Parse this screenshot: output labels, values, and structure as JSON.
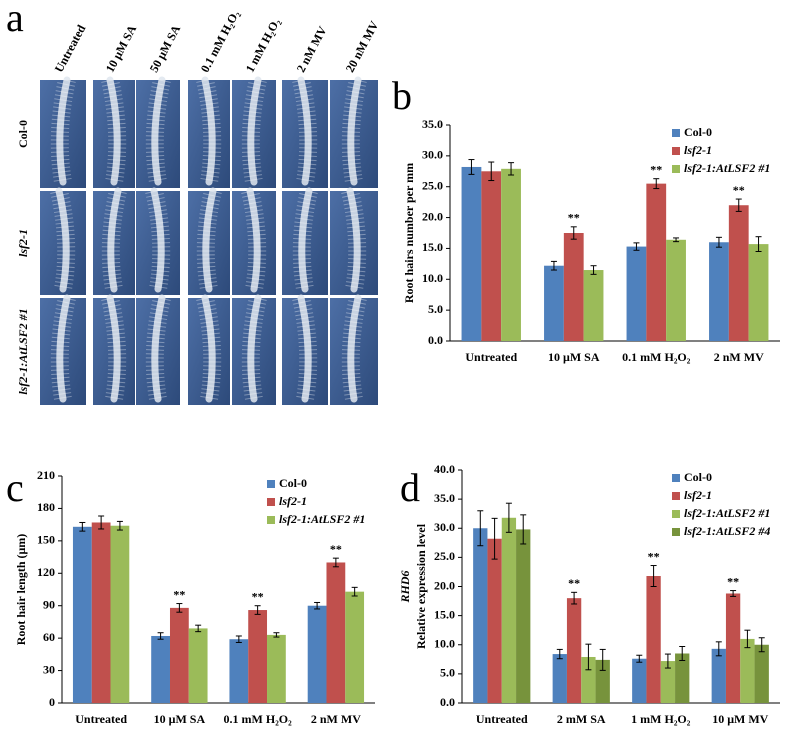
{
  "panel_labels": [
    "a",
    "b",
    "c",
    "d"
  ],
  "image_panel": {
    "columns": [
      "Untreated",
      "10 μM SA",
      "50 μM SA",
      "0.1 mM H₂O₂",
      "1 mM H₂O₂",
      "2 nM MV",
      "20 nM MV"
    ],
    "rows": [
      "Col-0",
      "lsf2-1",
      "lsf2-1:AtLSF2 #1"
    ]
  },
  "chart_data": [
    {
      "type": "bar",
      "ylabel": "Root hairs number per mm",
      "categories": [
        "Untreated",
        "10 μM SA",
        "0.1 mM H₂O₂",
        "2 nM MV"
      ],
      "ylim": [
        0,
        35
      ],
      "yticks": [
        {
          "value": 0,
          "label": "0.0"
        },
        {
          "value": 5,
          "label": "5.0"
        },
        {
          "value": 10,
          "label": "10.0"
        },
        {
          "value": 15,
          "label": "15.0"
        },
        {
          "value": 20,
          "label": "20.0"
        },
        {
          "value": 25,
          "label": "25.0"
        },
        {
          "value": 30,
          "label": "30.0"
        },
        {
          "value": 35,
          "label": "35.0"
        }
      ],
      "legend": "upper right",
      "series": [
        {
          "name": "Col-0",
          "color": "#4f81bd",
          "italic": false,
          "values": [
            28.2,
            12.2,
            15.3,
            16.0
          ],
          "errors": [
            1.2,
            0.7,
            0.6,
            0.8
          ]
        },
        {
          "name": "lsf2-1",
          "color": "#c0504d",
          "italic": true,
          "values": [
            27.5,
            17.5,
            25.5,
            22.0
          ],
          "errors": [
            1.5,
            1.0,
            0.8,
            1.0
          ],
          "marks": [
            null,
            "**",
            "**",
            "**"
          ]
        },
        {
          "name": "lsf2-1:AtLSF2 #1",
          "color": "#9bbb59",
          "italic": true,
          "values": [
            27.9,
            11.5,
            16.4,
            15.7
          ],
          "errors": [
            1.0,
            0.7,
            0.3,
            1.2
          ]
        }
      ]
    },
    {
      "type": "bar",
      "ylabel": "Root hair length (μm)",
      "categories": [
        "Untreated",
        "10 μM SA",
        "0.1 mM H₂O₂",
        "2 nM MV"
      ],
      "ylim": [
        0,
        210
      ],
      "yticks": [
        0,
        30,
        60,
        90,
        120,
        150,
        180,
        210
      ],
      "legend": "upper right",
      "series": [
        {
          "name": "Col-0",
          "color": "#4f81bd",
          "italic": false,
          "values": [
            163,
            62,
            59,
            90
          ],
          "errors": [
            4,
            3,
            3,
            3
          ]
        },
        {
          "name": "lsf2-1",
          "color": "#c0504d",
          "italic": true,
          "values": [
            167,
            88,
            86,
            130
          ],
          "errors": [
            6,
            4,
            4,
            4
          ],
          "marks": [
            null,
            "**",
            "**",
            "**"
          ]
        },
        {
          "name": "lsf2-1:AtLSF2 #1",
          "color": "#9bbb59",
          "italic": true,
          "values": [
            164,
            69,
            63,
            103
          ],
          "errors": [
            4,
            3,
            2,
            4
          ]
        }
      ]
    },
    {
      "type": "bar",
      "ylabel_gene": "RHD6",
      "ylabel": "Relative expression level",
      "categories": [
        "Untreated",
        "2 mM SA",
        "1 mM H₂O₂",
        "10 μM MV"
      ],
      "ylim": [
        0,
        40
      ],
      "yticks": [
        {
          "value": 0,
          "label": "0.0"
        },
        {
          "value": 5,
          "label": "5.0"
        },
        {
          "value": 10,
          "label": "10.0"
        },
        {
          "value": 15,
          "label": "15.0"
        },
        {
          "value": 20,
          "label": "20.0"
        },
        {
          "value": 25,
          "label": "25.0"
        },
        {
          "value": 30,
          "label": "30.0"
        },
        {
          "value": 35,
          "label": "35.0"
        },
        {
          "value": 40,
          "label": "40.0"
        }
      ],
      "legend": "upper right",
      "series": [
        {
          "name": "Col-0",
          "color": "#4f81bd",
          "italic": false,
          "values": [
            30.0,
            8.4,
            7.6,
            9.3
          ],
          "errors": [
            3.0,
            0.8,
            0.6,
            1.2
          ]
        },
        {
          "name": "lsf2-1",
          "color": "#c0504d",
          "italic": true,
          "values": [
            28.2,
            18.0,
            21.8,
            18.8
          ],
          "errors": [
            3.5,
            1.0,
            1.8,
            0.5
          ],
          "marks": [
            null,
            "**",
            "**",
            "**"
          ]
        },
        {
          "name": "lsf2-1:AtLSF2 #1",
          "color": "#9bbb59",
          "italic": true,
          "values": [
            31.8,
            7.9,
            7.2,
            11.0
          ],
          "errors": [
            2.5,
            2.2,
            1.2,
            1.5
          ]
        },
        {
          "name": "lsf2-1:AtLSF2 #4",
          "color": "#77933c",
          "italic": true,
          "values": [
            29.8,
            7.4,
            8.5,
            10.0
          ],
          "errors": [
            2.5,
            1.8,
            1.2,
            1.2
          ]
        }
      ]
    }
  ]
}
